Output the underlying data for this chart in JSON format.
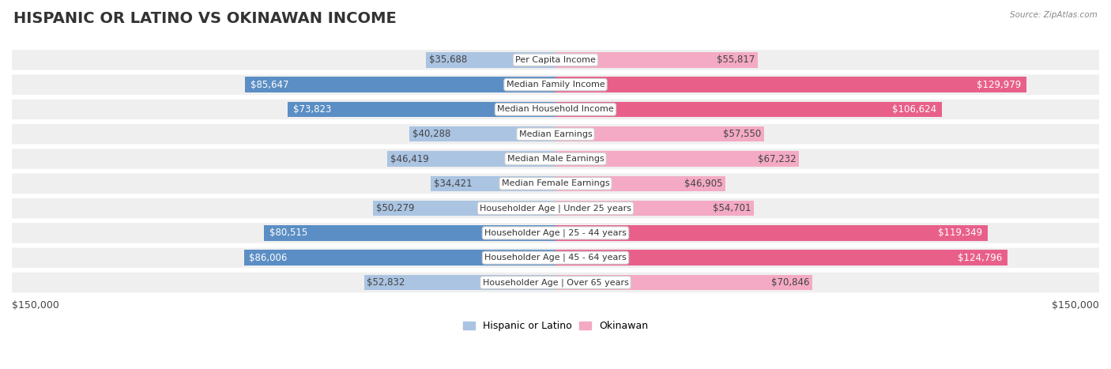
{
  "title": "HISPANIC OR LATINO VS OKINAWAN INCOME",
  "source": "Source: ZipAtlas.com",
  "categories": [
    "Per Capita Income",
    "Median Family Income",
    "Median Household Income",
    "Median Earnings",
    "Median Male Earnings",
    "Median Female Earnings",
    "Householder Age | Under 25 years",
    "Householder Age | 25 - 44 years",
    "Householder Age | 45 - 64 years",
    "Householder Age | Over 65 years"
  ],
  "hispanic_values": [
    35688,
    85647,
    73823,
    40288,
    46419,
    34421,
    50279,
    80515,
    86006,
    52832
  ],
  "okinawan_values": [
    55817,
    129979,
    106624,
    57550,
    67232,
    46905,
    54701,
    119349,
    124796,
    70846
  ],
  "hispanic_labels": [
    "$35,688",
    "$85,647",
    "$73,823",
    "$40,288",
    "$46,419",
    "$34,421",
    "$50,279",
    "$80,515",
    "$86,006",
    "$52,832"
  ],
  "okinawan_labels": [
    "$55,817",
    "$129,979",
    "$106,624",
    "$57,550",
    "$67,232",
    "$46,905",
    "$54,701",
    "$119,349",
    "$124,796",
    "$70,846"
  ],
  "hispanic_color_light": "#aac4e2",
  "hispanic_color_dark": "#5b8ec4",
  "okinawan_color_light": "#f4aac4",
  "okinawan_color_dark": "#e8608a",
  "max_value": 150000,
  "legend_hispanic": "Hispanic or Latino",
  "legend_okinawan": "Okinawan",
  "xlabel_left": "$150,000",
  "xlabel_right": "$150,000",
  "row_bg_color": "#efefef",
  "title_fontsize": 14,
  "label_fontsize": 8.5,
  "category_fontsize": 8.0,
  "bar_height": 0.62,
  "fig_width": 14.06,
  "fig_height": 4.67
}
